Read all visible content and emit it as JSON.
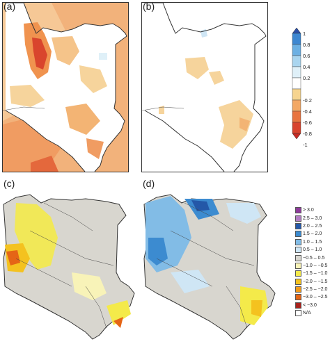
{
  "panels": {
    "a": {
      "label": "(a)"
    },
    "b": {
      "label": "(b)"
    },
    "c": {
      "label": "(c)"
    },
    "d": {
      "label": "(d)"
    }
  },
  "colorbar": {
    "ticks": [
      "1",
      "0.8",
      "0.6",
      "0.4",
      "0.2",
      "-0.2",
      "-0.4",
      "-0.6",
      "-0.8",
      "-1"
    ],
    "colors": [
      "#2b4fa6",
      "#3d87d1",
      "#6cb0e3",
      "#a9d5ef",
      "#dff0f8",
      "#ffffff",
      "#f6d48f",
      "#f3a865",
      "#e8743f",
      "#d8432e",
      "#c42a24"
    ]
  },
  "legend": {
    "items": [
      {
        "label": "> 3.0",
        "color": "#8e3b9b"
      },
      {
        "label": "2.5 – 3.0",
        "color": "#b27cc3"
      },
      {
        "label": "2.0 – 2.5",
        "color": "#2458a8"
      },
      {
        "label": "1.5 – 2.0",
        "color": "#3c8bd0"
      },
      {
        "label": "1.0 – 1.5",
        "color": "#82bce6"
      },
      {
        "label": "0.5 – 1.0",
        "color": "#cfe6f5"
      },
      {
        "label": "−0.5 – 0.5",
        "color": "#d8d6cf"
      },
      {
        "label": "−1.0 – −0.5",
        "color": "#f8f3b8"
      },
      {
        "label": "−1.5 – −1.0",
        "color": "#f4ea4a"
      },
      {
        "label": "−2.0 – −1.5",
        "color": "#f4c21f"
      },
      {
        "label": "−2.5 – −2.0",
        "color": "#f29a1a"
      },
      {
        "label": "−3.0 – −2.5",
        "color": "#e56516"
      },
      {
        "label": "< −3.0",
        "color": "#a8221c"
      },
      {
        "label": "N/A",
        "color": "#ffffff"
      }
    ]
  }
}
